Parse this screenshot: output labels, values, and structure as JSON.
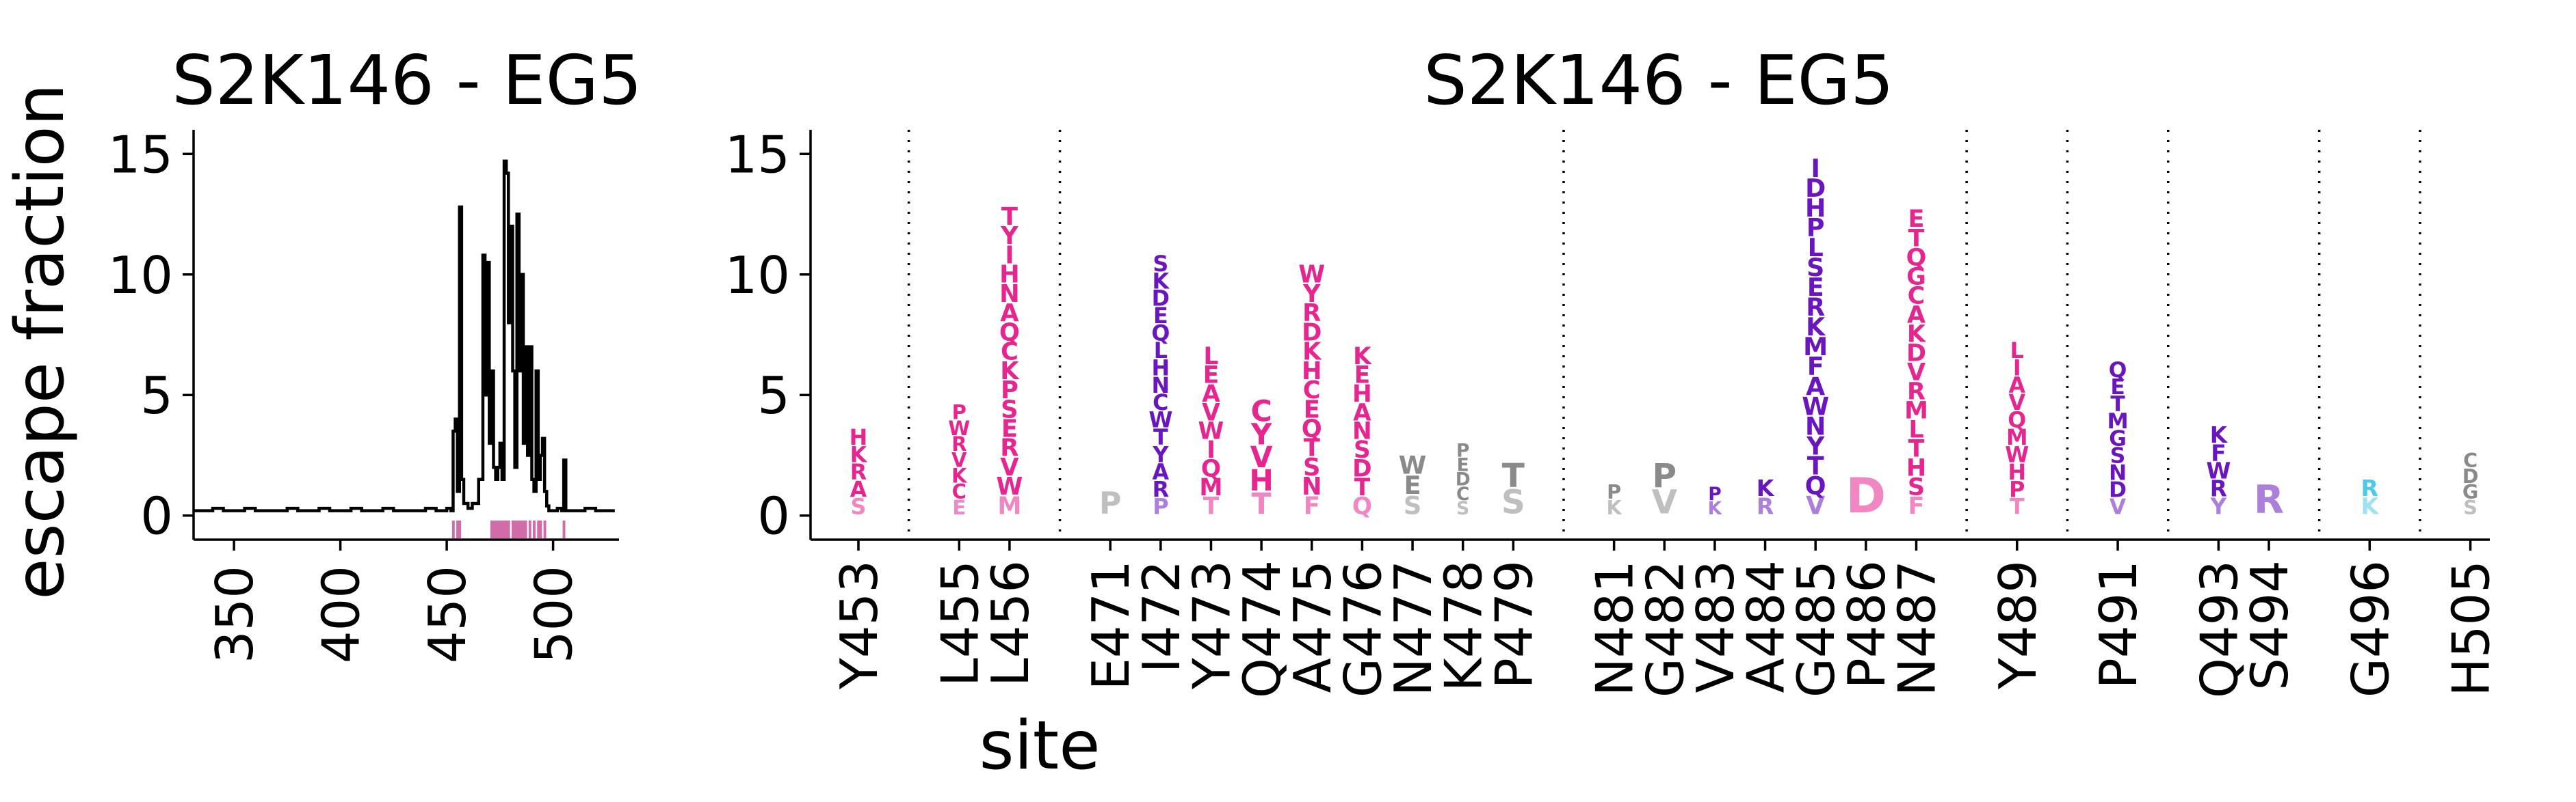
{
  "figure": {
    "ylabel": "escape fraction",
    "xlabel": "site"
  },
  "chart_data": [
    {
      "type": "line",
      "title": "S2K146 - EG5",
      "ylabel": "escape fraction",
      "xlabel": "site",
      "xlim": [
        331,
        531
      ],
      "ylim": [
        -1,
        16
      ],
      "xticks": [
        350,
        400,
        450,
        500
      ],
      "yticks": [
        0,
        5,
        10,
        15
      ],
      "grid": false,
      "x": [
        331,
        335,
        340,
        345,
        350,
        355,
        360,
        365,
        370,
        375,
        380,
        385,
        390,
        395,
        400,
        405,
        410,
        415,
        420,
        425,
        430,
        435,
        440,
        445,
        450,
        452,
        453,
        454,
        455,
        456,
        457,
        458,
        460,
        462,
        465,
        467,
        468,
        469,
        470,
        471,
        472,
        473,
        474,
        475,
        476,
        477,
        478,
        479,
        480,
        481,
        482,
        483,
        484,
        485,
        486,
        487,
        488,
        489,
        490,
        491,
        492,
        493,
        494,
        495,
        496,
        497,
        498,
        500,
        502,
        504,
        505,
        506,
        507,
        510,
        515,
        520,
        525,
        529
      ],
      "values": [
        0.2,
        0.2,
        0.3,
        0.2,
        0.2,
        0.3,
        0.2,
        0.2,
        0.2,
        0.3,
        0.2,
        0.2,
        0.3,
        0.2,
        0.2,
        0.3,
        0.2,
        0.2,
        0.3,
        0.2,
        0.2,
        0.2,
        0.3,
        0.2,
        0.3,
        0.2,
        3.5,
        4.0,
        1.0,
        12.8,
        1.5,
        0.5,
        0.3,
        0.5,
        1.5,
        10.8,
        5.0,
        10.5,
        3.0,
        6.0,
        2.0,
        1.5,
        2.0,
        3.0,
        1.5,
        14.7,
        14.2,
        8.0,
        12.0,
        6.0,
        2.0,
        12.5,
        6.0,
        10.0,
        3.0,
        7.0,
        2.5,
        7.0,
        1.5,
        1.0,
        6.0,
        1.5,
        2.5,
        3.2,
        1.0,
        0.4,
        0.2,
        0.2,
        0.3,
        0.2,
        2.3,
        0.2,
        0.2,
        0.2,
        0.3,
        0.2,
        0.2,
        0.2
      ],
      "highlight_sites": [
        453,
        455,
        456,
        471,
        472,
        473,
        474,
        475,
        476,
        477,
        478,
        479,
        481,
        482,
        483,
        484,
        485,
        486,
        487,
        489,
        491,
        493,
        494,
        496,
        505
      ],
      "highlight_color": "#d16ca8"
    },
    {
      "type": "logo",
      "title": "S2K146 - EG5",
      "ylabel": "escape fraction",
      "xlabel": "site",
      "ylim": [
        -1,
        16
      ],
      "yticks": [
        0,
        5,
        10,
        15
      ],
      "grid": false,
      "colors": {
        "pink": "#e6258f",
        "purple": "#6a16c0",
        "gray": "#8a8a8a",
        "cyan": "#4ec9e8"
      },
      "groups": [
        {
          "sites": [
            {
              "label": "Y453",
              "color": "pink",
              "letters": [
                "H",
                "K",
                "R",
                "A",
                "S"
              ],
              "total": 3.6
            }
          ]
        },
        {
          "sites": [
            {
              "label": "L455",
              "color": "pink",
              "letters": [
                "P",
                "W",
                "R",
                "V",
                "K",
                "C",
                "E"
              ],
              "total": 4.6
            },
            {
              "label": "L456",
              "color": "pink",
              "letters": [
                "T",
                "Y",
                "I",
                "H",
                "N",
                "A",
                "Q",
                "C",
                "K",
                "P",
                "S",
                "E",
                "R",
                "V",
                "W",
                "M"
              ],
              "total": 12.8
            }
          ]
        },
        {
          "sites": [
            {
              "label": "E471",
              "color": "gray",
              "letters": [
                "P"
              ],
              "total": 1.0
            },
            {
              "label": "I472",
              "color": "purple",
              "letters": [
                "S",
                "K",
                "D",
                "E",
                "Q",
                "L",
                "H",
                "N",
                "C",
                "W",
                "T",
                "Y",
                "A",
                "R",
                "P"
              ],
              "total": 10.8
            },
            {
              "label": "Y473",
              "color": "pink",
              "letters": [
                "L",
                "E",
                "A",
                "V",
                "W",
                "I",
                "Q",
                "M",
                "T"
              ],
              "total": 7.0
            },
            {
              "label": "Q474",
              "color": "pink",
              "letters": [
                "C",
                "Y",
                "V",
                "H",
                "T"
              ],
              "total": 4.8
            },
            {
              "label": "A475",
              "color": "pink",
              "letters": [
                "W",
                "Y",
                "R",
                "D",
                "K",
                "H",
                "C",
                "E",
                "Q",
                "T",
                "S",
                "N",
                "F"
              ],
              "total": 10.4
            },
            {
              "label": "G476",
              "color": "pink",
              "letters": [
                "K",
                "E",
                "H",
                "A",
                "N",
                "S",
                "D",
                "T",
                "Q"
              ],
              "total": 7.0
            },
            {
              "label": "N477",
              "color": "gray",
              "letters": [
                "W",
                "E",
                "S"
              ],
              "total": 2.5
            },
            {
              "label": "K478",
              "color": "gray",
              "letters": [
                "P",
                "E",
                "D",
                "C",
                "S"
              ],
              "total": 3.0
            },
            {
              "label": "P479",
              "color": "gray",
              "letters": [
                "T",
                "S"
              ],
              "total": 2.2
            }
          ]
        },
        {
          "sites": [
            {
              "label": "N481",
              "color": "gray",
              "letters": [
                "P",
                "K"
              ],
              "total": 1.3
            },
            {
              "label": "G482",
              "color": "gray",
              "letters": [
                "P",
                "V"
              ],
              "total": 2.2
            },
            {
              "label": "V483",
              "color": "purple",
              "letters": [
                "P",
                "K"
              ],
              "total": 1.2
            },
            {
              "label": "A484",
              "color": "purple",
              "letters": [
                "K",
                "R"
              ],
              "total": 1.5
            },
            {
              "label": "G485",
              "color": "purple",
              "letters": [
                "I",
                "D",
                "H",
                "P",
                "L",
                "S",
                "E",
                "R",
                "K",
                "M",
                "F",
                "A",
                "W",
                "N",
                "Y",
                "T",
                "Q",
                "V"
              ],
              "total": 14.8
            },
            {
              "label": "P486",
              "color": "pink",
              "letters": [
                "D"
              ],
              "total": 1.6
            },
            {
              "label": "N487",
              "color": "pink",
              "letters": [
                "E",
                "T",
                "Q",
                "G",
                "C",
                "A",
                "K",
                "D",
                "V",
                "R",
                "M",
                "L",
                "T",
                "H",
                "S",
                "F"
              ],
              "total": 12.7
            }
          ]
        },
        {
          "sites": [
            {
              "label": "Y489",
              "color": "pink",
              "letters": [
                "L",
                "I",
                "A",
                "V",
                "Q",
                "M",
                "W",
                "H",
                "P",
                "T"
              ],
              "total": 7.2
            }
          ]
        },
        {
          "sites": [
            {
              "label": "P491",
              "color": "purple",
              "letters": [
                "Q",
                "E",
                "T",
                "M",
                "G",
                "S",
                "N",
                "D",
                "V"
              ],
              "total": 6.4
            }
          ]
        },
        {
          "sites": [
            {
              "label": "Q493",
              "color": "purple",
              "letters": [
                "K",
                "F",
                "W",
                "R",
                "Y"
              ],
              "total": 3.7
            },
            {
              "label": "S494",
              "color": "purple",
              "letters": [
                "R"
              ],
              "total": 1.3
            }
          ]
        },
        {
          "sites": [
            {
              "label": "G496",
              "color": "cyan",
              "letters": [
                "R",
                "K"
              ],
              "total": 1.5
            }
          ]
        },
        {
          "sites": [
            {
              "label": "H505",
              "color": "gray",
              "letters": [
                "C",
                "D",
                "G",
                "S"
              ],
              "total": 2.6
            }
          ]
        }
      ]
    }
  ]
}
